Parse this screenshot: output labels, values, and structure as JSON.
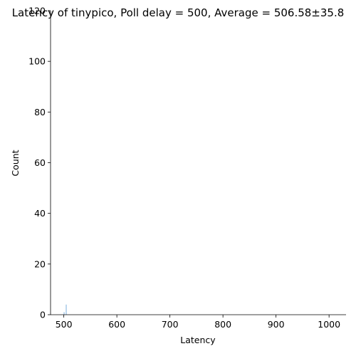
{
  "chart_data": {
    "type": "bar",
    "title": "Latency of tinypico, Poll delay = 500, Average = 506.58±35.8",
    "xlabel": "Latency",
    "ylabel": "Count",
    "xlim": [
      475,
      1032
    ],
    "ylim": [
      0,
      120
    ],
    "xticks": [
      "500",
      "600",
      "700",
      "800",
      "900",
      "1000"
    ],
    "yticks": [
      "0",
      "20",
      "40",
      "60",
      "80",
      "100",
      "120"
    ],
    "bar_color": "#5b9bd5",
    "grid": false,
    "bins": [
      {
        "x": 500.5,
        "width": 1,
        "count": 1
      },
      {
        "x": 504.5,
        "width": 1,
        "count": 4
      }
    ]
  }
}
